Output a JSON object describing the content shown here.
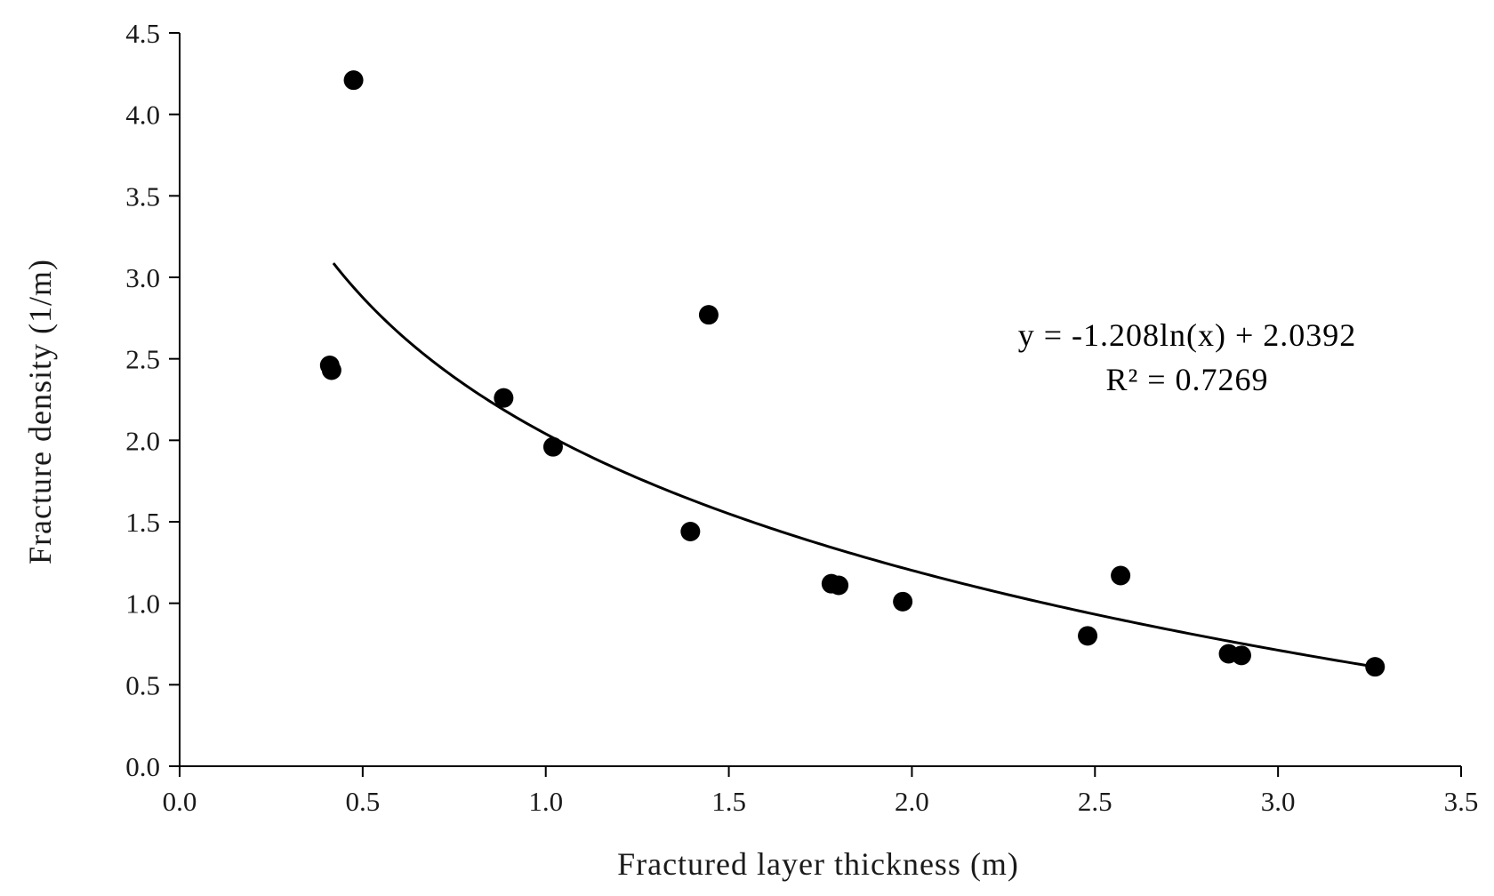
{
  "chart_data": {
    "type": "scatter",
    "xlabel": "Fractured layer thickness (m)",
    "ylabel": "Fracture  density (1/m)",
    "xlim": [
      0,
      3.5
    ],
    "ylim": [
      0,
      4.5
    ],
    "x_ticks": [
      "0.0",
      "0.5",
      "1.0",
      "1.5",
      "2.0",
      "2.5",
      "3.0",
      "3.5"
    ],
    "y_ticks": [
      "0.0",
      "0.5",
      "1.0",
      "1.5",
      "2.0",
      "2.5",
      "3.0",
      "3.5",
      "4.0",
      "4.5"
    ],
    "grid": false,
    "legend": "none",
    "point_color": "#000000",
    "points": [
      {
        "x": 0.41,
        "y": 2.46
      },
      {
        "x": 0.415,
        "y": 2.43
      },
      {
        "x": 0.475,
        "y": 4.21
      },
      {
        "x": 0.885,
        "y": 2.26
      },
      {
        "x": 1.02,
        "y": 1.96
      },
      {
        "x": 1.395,
        "y": 1.44
      },
      {
        "x": 1.445,
        "y": 2.77
      },
      {
        "x": 1.78,
        "y": 1.12
      },
      {
        "x": 1.8,
        "y": 1.11
      },
      {
        "x": 1.975,
        "y": 1.01
      },
      {
        "x": 2.48,
        "y": 0.8
      },
      {
        "x": 2.57,
        "y": 1.17
      },
      {
        "x": 2.865,
        "y": 0.69
      },
      {
        "x": 2.9,
        "y": 0.68
      },
      {
        "x": 3.265,
        "y": 0.61
      }
    ],
    "trendline": {
      "type": "logarithmic",
      "a": -1.208,
      "b": 2.0392,
      "x_range": [
        0.42,
        3.265
      ],
      "color": "#000000"
    },
    "annotations": {
      "equation": "y = -1.208ln(x) + 2.0392",
      "r_squared": "R² = 0.7269"
    }
  }
}
